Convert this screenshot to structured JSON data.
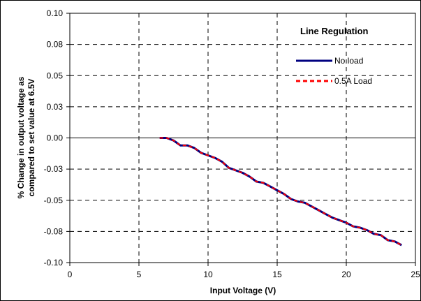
{
  "chart_data": {
    "type": "line",
    "title": "",
    "xlabel": "Input Voltage (V)",
    "ylabel_lines": [
      "% Change in output voltage as",
      "compared to set value at 6.5V"
    ],
    "xlim": [
      0,
      25
    ],
    "ylim": [
      -0.1,
      0.1
    ],
    "x_ticks": [
      0,
      5,
      10,
      15,
      20,
      25
    ],
    "x_tick_labels": [
      "0",
      "5",
      "10",
      "15",
      "20",
      "25"
    ],
    "y_ticks": [
      0.1,
      0.08,
      0.05,
      0.03,
      0.0,
      -0.03,
      -0.05,
      -0.08,
      -0.1
    ],
    "y_tick_labels": [
      "0.10",
      "0.08",
      "0.05",
      "0.03",
      "0.00",
      "-0.03",
      "-0.05",
      "-0.08",
      "-0.10"
    ],
    "grid": true,
    "legend": {
      "title": "Line Regulation",
      "position": "top-right",
      "entries": [
        "No load",
        "0.5A Load"
      ]
    },
    "series": [
      {
        "name": "No load",
        "color": "#000080",
        "style": "solid",
        "x": [
          6.5,
          7.0,
          7.5,
          8.0,
          8.5,
          9.0,
          9.5,
          10.0,
          10.5,
          11.0,
          11.5,
          12.0,
          12.5,
          13.0,
          13.5,
          14.0,
          14.5,
          15.0,
          15.5,
          16.0,
          16.5,
          17.0,
          17.5,
          18.0,
          18.5,
          19.0,
          19.5,
          20.0,
          20.5,
          21.0,
          21.5,
          22.0,
          22.5,
          23.0,
          23.5,
          24.0
        ],
        "y": [
          0.0,
          0.0,
          -0.002,
          -0.006,
          -0.006,
          -0.008,
          -0.012,
          -0.014,
          -0.016,
          -0.019,
          -0.024,
          -0.026,
          -0.028,
          -0.031,
          -0.035,
          -0.036,
          -0.039,
          -0.042,
          -0.045,
          -0.049,
          -0.051,
          -0.052,
          -0.055,
          -0.058,
          -0.061,
          -0.064,
          -0.066,
          -0.068,
          -0.071,
          -0.072,
          -0.074,
          -0.077,
          -0.078,
          -0.082,
          -0.083,
          -0.086
        ]
      },
      {
        "name": "0.5A Load",
        "color": "#ff0000",
        "style": "dashed",
        "x": [
          6.5,
          7.0,
          7.5,
          8.0,
          8.5,
          9.0,
          9.5,
          10.0,
          10.5,
          11.0,
          11.5,
          12.0,
          12.5,
          13.0,
          13.5,
          14.0,
          14.5,
          15.0,
          15.5,
          16.0,
          16.5,
          17.0,
          17.5,
          18.0,
          18.5,
          19.0,
          19.5,
          20.0,
          20.5,
          21.0,
          21.5,
          22.0,
          22.5,
          23.0,
          23.5,
          24.0
        ],
        "y": [
          0.0,
          0.0,
          -0.002,
          -0.006,
          -0.006,
          -0.008,
          -0.012,
          -0.014,
          -0.016,
          -0.019,
          -0.024,
          -0.026,
          -0.028,
          -0.031,
          -0.035,
          -0.036,
          -0.039,
          -0.042,
          -0.045,
          -0.049,
          -0.051,
          -0.052,
          -0.055,
          -0.058,
          -0.061,
          -0.064,
          -0.066,
          -0.068,
          -0.071,
          -0.072,
          -0.074,
          -0.077,
          -0.078,
          -0.082,
          -0.083,
          -0.086
        ]
      }
    ]
  }
}
